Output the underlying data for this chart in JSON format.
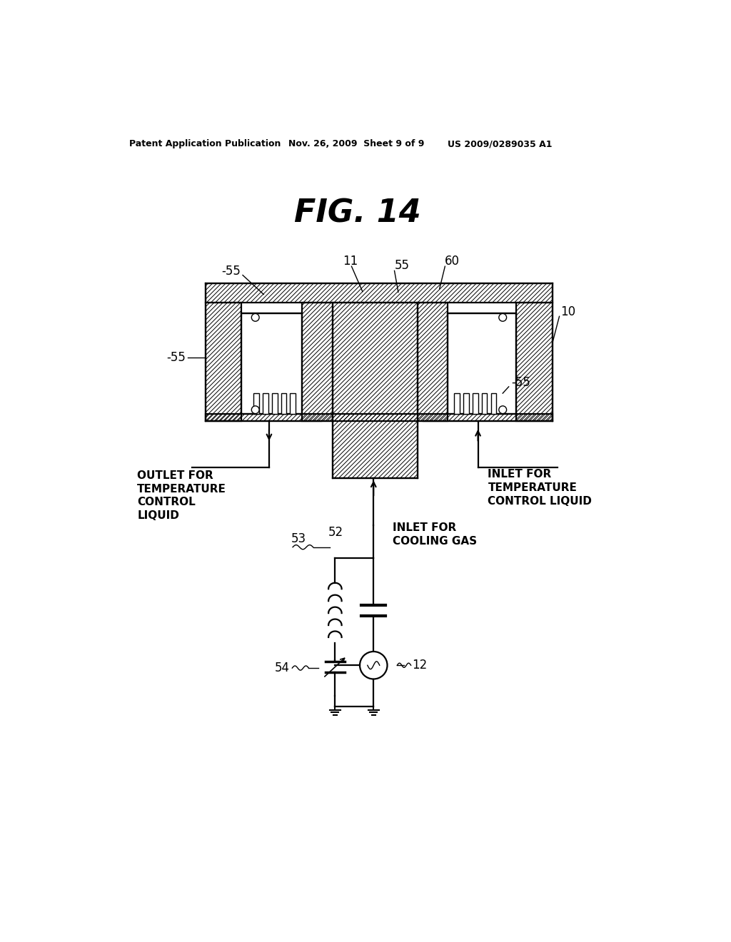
{
  "bg_color": "#ffffff",
  "header_left": "Patent Application Publication",
  "header_mid": "Nov. 26, 2009  Sheet 9 of 9",
  "header_right": "US 2009/0289035 A1",
  "fig_title": "FIG. 14",
  "outlet_text": "OUTLET FOR\nTEMPERATURE\nCONTROL\nLIQUID",
  "inlet_temp_text": "INLET FOR\nTEMPERATURE\nCONTROL LIQUID",
  "inlet_cool_text": "INLET FOR\nCOOLING GAS"
}
